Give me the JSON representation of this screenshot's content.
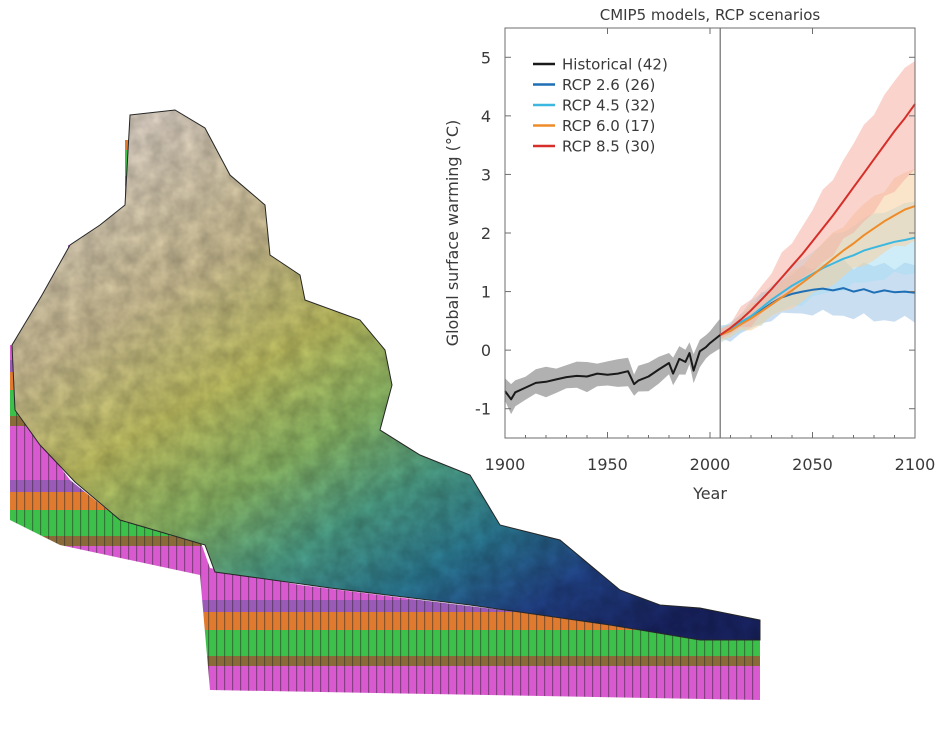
{
  "figure": {
    "terrain_image": "3d-watershed-terrain-block"
  },
  "chart_data": {
    "type": "line",
    "title": "CMIP5 models, RCP scenarios",
    "xlabel": "Year",
    "ylabel": "Global surface warming (°C)",
    "xlim": [
      1900,
      2100
    ],
    "ylim": [
      -1.5,
      5.5
    ],
    "xticks": [
      1900,
      1950,
      2000,
      2050,
      2100
    ],
    "yticks": [
      -1,
      0,
      1,
      2,
      3,
      4,
      5
    ],
    "grid": false,
    "legend_position": "top-left",
    "reference_line_x": 2005,
    "series": [
      {
        "name": "Historical (42)",
        "color": "#1a1a1a",
        "band_color": "#a9a9a9",
        "x": [
          1900,
          1903,
          1905,
          1910,
          1915,
          1920,
          1925,
          1930,
          1935,
          1940,
          1945,
          1950,
          1955,
          1960,
          1963,
          1965,
          1970,
          1975,
          1980,
          1982,
          1985,
          1988,
          1990,
          1992,
          1995,
          1998,
          2000,
          2005
        ],
        "values": [
          -0.7,
          -0.84,
          -0.72,
          -0.64,
          -0.56,
          -0.54,
          -0.5,
          -0.46,
          -0.44,
          -0.45,
          -0.4,
          -0.42,
          -0.4,
          -0.36,
          -0.58,
          -0.52,
          -0.45,
          -0.33,
          -0.22,
          -0.4,
          -0.15,
          -0.2,
          -0.05,
          -0.35,
          -0.02,
          0.05,
          0.12,
          0.26
        ],
        "band_half_width": 0.22
      },
      {
        "name": "RCP 2.6 (26)",
        "color": "#1f6fb5",
        "band_color": "#9ec3e8",
        "x": [
          2005,
          2010,
          2015,
          2020,
          2025,
          2030,
          2035,
          2040,
          2045,
          2050,
          2055,
          2060,
          2065,
          2070,
          2075,
          2080,
          2085,
          2090,
          2095,
          2100
        ],
        "values": [
          0.26,
          0.33,
          0.45,
          0.55,
          0.68,
          0.8,
          0.9,
          0.96,
          1.0,
          1.03,
          1.05,
          1.02,
          1.06,
          1.0,
          1.04,
          0.98,
          1.02,
          0.99,
          1.0,
          0.98
        ],
        "band_lower": [
          0.18,
          0.2,
          0.27,
          0.35,
          0.45,
          0.55,
          0.6,
          0.62,
          0.63,
          0.64,
          0.63,
          0.6,
          0.6,
          0.56,
          0.56,
          0.52,
          0.52,
          0.5,
          0.52,
          0.52
        ],
        "band_upper": [
          0.36,
          0.45,
          0.63,
          0.76,
          0.92,
          1.05,
          1.2,
          1.3,
          1.38,
          1.43,
          1.48,
          1.45,
          1.5,
          1.44,
          1.48,
          1.42,
          1.46,
          1.44,
          1.46,
          1.44
        ]
      },
      {
        "name": "RCP 4.5 (32)",
        "color": "#3bb7e0",
        "band_color": "#a7dff2",
        "x": [
          2005,
          2010,
          2015,
          2020,
          2025,
          2030,
          2035,
          2040,
          2045,
          2050,
          2055,
          2060,
          2065,
          2070,
          2075,
          2080,
          2085,
          2090,
          2095,
          2100
        ],
        "values": [
          0.26,
          0.35,
          0.48,
          0.58,
          0.72,
          0.86,
          0.98,
          1.1,
          1.2,
          1.3,
          1.4,
          1.48,
          1.56,
          1.62,
          1.7,
          1.75,
          1.8,
          1.85,
          1.88,
          1.92
        ],
        "band_lower": [
          0.18,
          0.22,
          0.3,
          0.38,
          0.48,
          0.58,
          0.66,
          0.74,
          0.82,
          0.88,
          0.95,
          1.0,
          1.06,
          1.1,
          1.15,
          1.2,
          1.24,
          1.28,
          1.3,
          1.33
        ],
        "band_upper": [
          0.36,
          0.48,
          0.66,
          0.8,
          0.96,
          1.12,
          1.28,
          1.42,
          1.56,
          1.7,
          1.82,
          1.94,
          2.04,
          2.14,
          2.24,
          2.3,
          2.38,
          2.44,
          2.48,
          2.52
        ]
      },
      {
        "name": "RCP 6.0 (17)",
        "color": "#ee8c2a",
        "band_color": "#f7cf9f",
        "x": [
          2005,
          2010,
          2015,
          2020,
          2025,
          2030,
          2035,
          2040,
          2045,
          2050,
          2055,
          2060,
          2065,
          2070,
          2075,
          2080,
          2085,
          2090,
          2095,
          2100
        ],
        "values": [
          0.26,
          0.33,
          0.44,
          0.54,
          0.66,
          0.78,
          0.9,
          1.02,
          1.15,
          1.28,
          1.42,
          1.56,
          1.7,
          1.82,
          1.96,
          2.08,
          2.2,
          2.3,
          2.4,
          2.46
        ],
        "band_lower": [
          0.18,
          0.22,
          0.3,
          0.36,
          0.46,
          0.56,
          0.64,
          0.74,
          0.84,
          0.94,
          1.04,
          1.14,
          1.26,
          1.36,
          1.46,
          1.56,
          1.66,
          1.74,
          1.82,
          1.88
        ],
        "band_upper": [
          0.36,
          0.46,
          0.6,
          0.74,
          0.88,
          1.02,
          1.16,
          1.32,
          1.48,
          1.64,
          1.82,
          1.98,
          2.16,
          2.3,
          2.48,
          2.62,
          2.76,
          2.9,
          3.02,
          3.1
        ]
      },
      {
        "name": "RCP 8.5 (30)",
        "color": "#d62f2a",
        "band_color": "#f5b0a3",
        "x": [
          2005,
          2010,
          2015,
          2020,
          2025,
          2030,
          2035,
          2040,
          2045,
          2050,
          2055,
          2060,
          2065,
          2070,
          2075,
          2080,
          2085,
          2090,
          2095,
          2100
        ],
        "values": [
          0.26,
          0.38,
          0.52,
          0.68,
          0.86,
          1.04,
          1.24,
          1.44,
          1.64,
          1.86,
          2.08,
          2.3,
          2.54,
          2.78,
          3.02,
          3.26,
          3.5,
          3.74,
          3.96,
          4.2
        ],
        "band_lower": [
          0.18,
          0.26,
          0.36,
          0.46,
          0.6,
          0.74,
          0.88,
          1.02,
          1.18,
          1.34,
          1.5,
          1.66,
          1.84,
          2.02,
          2.2,
          2.38,
          2.56,
          2.74,
          2.92,
          3.1
        ],
        "band_upper": [
          0.36,
          0.5,
          0.68,
          0.88,
          1.1,
          1.34,
          1.6,
          1.86,
          2.12,
          2.4,
          2.68,
          2.96,
          3.24,
          3.52,
          3.8,
          4.08,
          4.34,
          4.58,
          4.8,
          5.0
        ]
      }
    ]
  }
}
